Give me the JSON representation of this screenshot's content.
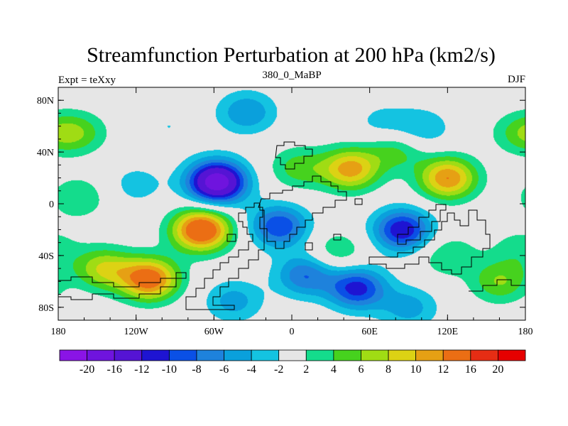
{
  "chart_data": {
    "type": "contour-map",
    "title": "Streamfunction Perturbation at 200 hPa (km2/s)",
    "subtitle_left": "Expt = teXxy",
    "subtitle_center": "380_0_MaBP",
    "subtitle_right": "DJF",
    "xlim": [
      -180,
      180
    ],
    "ylim": [
      -90,
      90
    ],
    "x_ticks": [
      {
        "value": -180,
        "label": "180"
      },
      {
        "value": -120,
        "label": "120W"
      },
      {
        "value": -60,
        "label": "60W"
      },
      {
        "value": 0,
        "label": "0"
      },
      {
        "value": 60,
        "label": "60E"
      },
      {
        "value": 120,
        "label": "120E"
      },
      {
        "value": 180,
        "label": "180"
      }
    ],
    "y_ticks": [
      {
        "value": 80,
        "label": "80N"
      },
      {
        "value": 40,
        "label": "40N"
      },
      {
        "value": 0,
        "label": "0"
      },
      {
        "value": -40,
        "label": "40S"
      },
      {
        "value": -80,
        "label": "80S"
      }
    ],
    "levels": [
      -20,
      -16,
      -12,
      -10,
      -8,
      -6,
      -4,
      -2,
      2,
      4,
      6,
      8,
      10,
      12,
      16,
      20
    ],
    "colorbar_labels": [
      "-20",
      "-16",
      "-12",
      "-10",
      "-8",
      "-6",
      "-4",
      "-2",
      "2",
      "4",
      "6",
      "8",
      "10",
      "12",
      "16",
      "20"
    ],
    "colors": [
      "#8a14e6",
      "#6f14de",
      "#5514d4",
      "#1e14d2",
      "#0a50e6",
      "#1e82dc",
      "#0aa0dc",
      "#14c3e1",
      "#e6e6e6",
      "#14dc8c",
      "#46d21e",
      "#a0dc14",
      "#dcd214",
      "#e6a014",
      "#eb6e14",
      "#e62d14",
      "#e60000"
    ],
    "centers": [
      {
        "lon": -58,
        "lat": 17,
        "value": -19
      },
      {
        "lon": -70,
        "lat": -20,
        "value": 16
      },
      {
        "lon": -110,
        "lat": -58,
        "value": 14
      },
      {
        "lon": -145,
        "lat": -50,
        "value": 8
      },
      {
        "lon": 45,
        "lat": 27,
        "value": 11
      },
      {
        "lon": 120,
        "lat": 20,
        "value": 12
      },
      {
        "lon": 5,
        "lat": 28,
        "value": 5
      },
      {
        "lon": 80,
        "lat": 42,
        "value": 5
      },
      {
        "lon": 50,
        "lat": -65,
        "value": -11
      },
      {
        "lon": 10,
        "lat": -55,
        "value": -8
      },
      {
        "lon": 85,
        "lat": -20,
        "value": -12
      },
      {
        "lon": -10,
        "lat": -17,
        "value": -10
      },
      {
        "lon": -35,
        "lat": 71,
        "value": -6
      },
      {
        "lon": 100,
        "lat": 58,
        "value": -4
      },
      {
        "lon": 160,
        "lat": -60,
        "value": 6
      },
      {
        "lon": -165,
        "lat": 55,
        "value": 5
      },
      {
        "lon": -165,
        "lat": 5,
        "value": 4
      },
      {
        "lon": 35,
        "lat": -37,
        "value": 4
      },
      {
        "lon": 120,
        "lat": -40,
        "value": 4
      },
      {
        "lon": 175,
        "lat": 55,
        "value": 4
      },
      {
        "lon": 175,
        "lat": -35,
        "value": 3
      },
      {
        "lon": -95,
        "lat": 60,
        "value": -2
      },
      {
        "lon": 70,
        "lat": 62,
        "value": -3
      },
      {
        "lon": -120,
        "lat": 15,
        "value": -3
      },
      {
        "lon": -45,
        "lat": -75,
        "value": -5
      },
      {
        "lon": 90,
        "lat": -80,
        "value": -5
      }
    ]
  }
}
